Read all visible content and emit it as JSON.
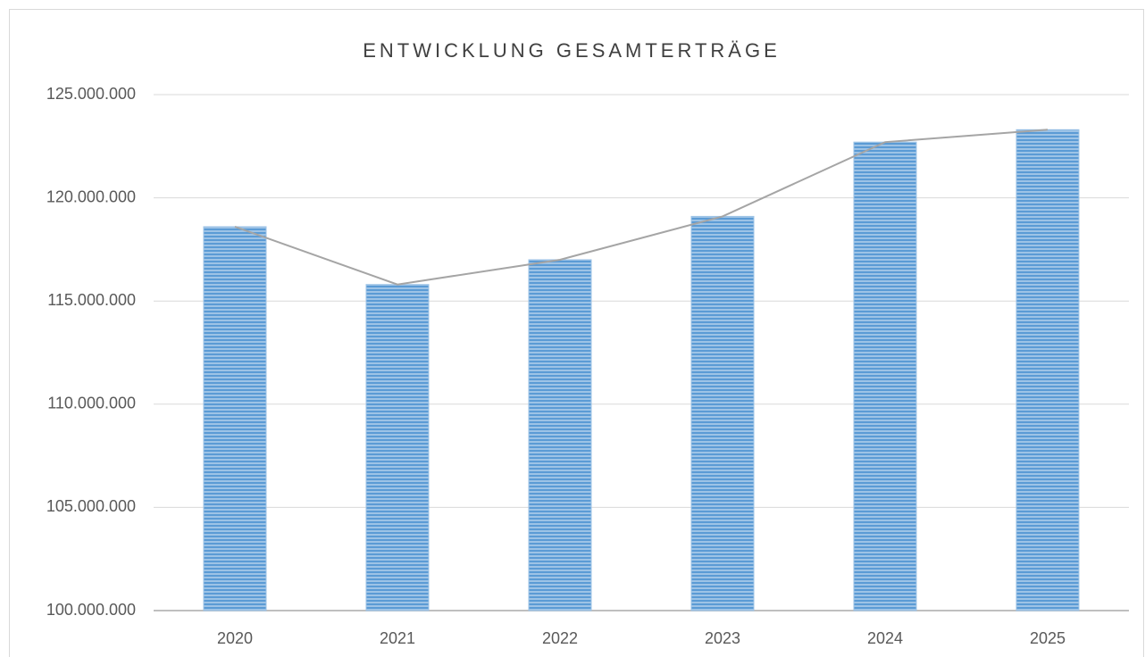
{
  "chart_data": {
    "type": "bar",
    "title": "ENTWICKLUNG GESAMTERTRÄGE",
    "categories": [
      "2020",
      "2021",
      "2022",
      "2023",
      "2024",
      "2025"
    ],
    "values": [
      118600000,
      115800000,
      117000000,
      119100000,
      122700000,
      123300000
    ],
    "color": "#5b9bd5",
    "line": true,
    "line_color": "#a5a5a5",
    "ylim": [
      100000000,
      125000000
    ],
    "yticks": [
      {
        "value": 100000000,
        "label": "100.000.000"
      },
      {
        "value": 105000000,
        "label": "105.000.000"
      },
      {
        "value": 110000000,
        "label": "110.000.000"
      },
      {
        "value": 115000000,
        "label": "115.000.000"
      },
      {
        "value": 120000000,
        "label": "120.000.000"
      },
      {
        "value": 125000000,
        "label": "125.000.000"
      }
    ],
    "grid": true
  }
}
